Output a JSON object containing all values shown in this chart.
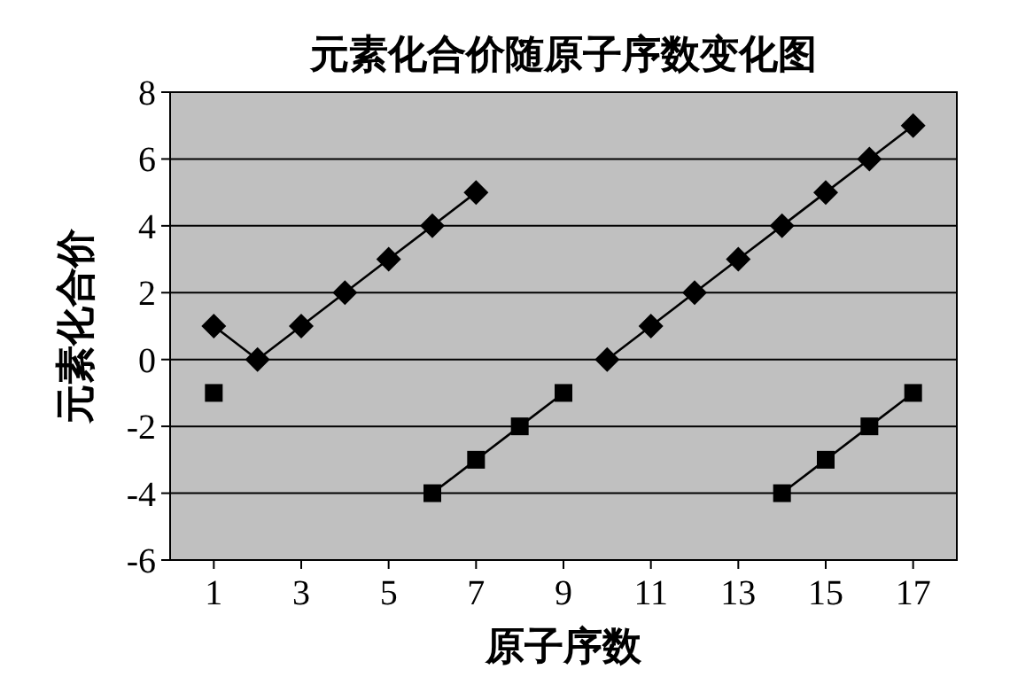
{
  "chart_data": {
    "type": "line",
    "title": "元素化合价随原子序数变化图",
    "xlabel": "原子序数",
    "ylabel": "元素化合价",
    "x": [
      1,
      2,
      3,
      4,
      5,
      6,
      7,
      8,
      9,
      10,
      11,
      12,
      13,
      14,
      15,
      16,
      17
    ],
    "series": [
      {
        "color": "#000000",
        "marker": "diamond",
        "values": [
          1,
          0,
          1,
          2,
          3,
          4,
          5,
          null,
          null,
          0,
          1,
          2,
          3,
          4,
          5,
          6,
          7
        ]
      },
      {
        "color": "#000000",
        "marker": "square",
        "values": [
          -1,
          null,
          null,
          null,
          null,
          -4,
          -3,
          -2,
          -1,
          null,
          null,
          null,
          null,
          -4,
          -3,
          -2,
          -1
        ]
      }
    ],
    "xlim": [
      0,
      18
    ],
    "xticks": [
      1,
      3,
      5,
      7,
      9,
      11,
      13,
      15,
      17
    ],
    "ylim": [
      -6,
      8
    ],
    "yticks": [
      {
        "value": -6,
        "label": "-6"
      },
      {
        "value": -4,
        "label": "-4"
      },
      {
        "value": -2,
        "label": "-2"
      },
      0,
      2,
      4,
      6,
      8
    ],
    "grid": "y"
  }
}
